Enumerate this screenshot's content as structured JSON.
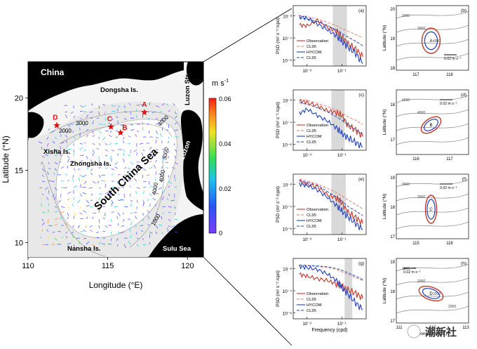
{
  "colors": {
    "obs": "#c0392b",
    "obs_ci": "#e07a6a",
    "model": "#1f3fbf",
    "model_ci": "#1f3fbf",
    "land": "#000000",
    "sea": "#ffffff",
    "shade": "#d9d9d9",
    "contour": "#808080"
  },
  "map": {
    "xlabel": "Longitude (°E)",
    "ylabel": "Latitude (°N)",
    "xticks": [
      "110",
      "115",
      "120"
    ],
    "yticks": [
      "10",
      "15",
      "20"
    ],
    "xlim": [
      110,
      121
    ],
    "ylim": [
      9,
      22.5
    ],
    "colorbar_unit": "m s",
    "colorbar_exp": "-1",
    "colorbar_ticks": [
      "0.06",
      "0.04",
      "0.02",
      "0"
    ],
    "colorbar_range": [
      0,
      0.06
    ],
    "labels": {
      "china": "China",
      "dongsha": "Dongsha Is.",
      "luzon_str": "Luzon Str.",
      "xisha": "Xisha Is.",
      "zhongsha": "Zhongsha Is.",
      "scs": "South China Sea",
      "luzon": "Luzon",
      "nansha": "Nansha Is.",
      "sulu": "Sulu Sea"
    },
    "isobath_labels": [
      "2000",
      "3000",
      "4000",
      "3000",
      "4000",
      "4000",
      "1000"
    ],
    "stations": [
      {
        "name": "A",
        "lon": 117.3,
        "lat": 19.0
      },
      {
        "name": "B",
        "lon": 115.8,
        "lat": 17.6
      },
      {
        "name": "C",
        "lon": 115.2,
        "lat": 18.0
      },
      {
        "name": "D",
        "lon": 111.8,
        "lat": 18.1
      }
    ]
  },
  "psd_panels": [
    {
      "tag": "(a)",
      "ylabel": "PSD (m² s⁻² /cpd)",
      "yticks": [
        "10⁻²",
        "10⁻⁴",
        "10⁻⁶"
      ],
      "xticks": [
        "10⁻²",
        "10⁻¹"
      ],
      "legend": [
        "Observation",
        "CL95",
        "HYCOM",
        "CL95"
      ],
      "xlabel": ""
    },
    {
      "tag": "(c)",
      "ylabel": "PSD (m² s⁻² /cpd)",
      "yticks": [
        "10⁻²",
        "10⁻⁴",
        "10⁻⁶"
      ],
      "xticks": [
        "10⁻²",
        "10⁻¹"
      ],
      "legend": [
        "Observation",
        "CL95",
        "HYCOM",
        "CL95"
      ],
      "xlabel": ""
    },
    {
      "tag": "(e)",
      "ylabel": "PSD (m² s⁻² /cpd)",
      "yticks": [
        "10⁻²",
        "10⁻⁴",
        "10⁻⁶"
      ],
      "xticks": [
        "10⁻²",
        "10⁻¹"
      ],
      "legend": [
        "Observation",
        "CL95",
        "HYCOM",
        "CL95"
      ],
      "xlabel": ""
    },
    {
      "tag": "(g)",
      "ylabel": "PSD (m² s⁻² /cpd)",
      "yticks": [
        "10⁻²",
        "10⁻⁴",
        "10⁻⁶"
      ],
      "xticks": [
        "10⁻²",
        "10⁻¹"
      ],
      "legend": [
        "Observation",
        "CL95",
        "HYCOM",
        "CL95"
      ],
      "xlabel": "Frequency (cpd)"
    }
  ],
  "ellipse_panels": [
    {
      "tag": "(b)",
      "point": "A",
      "ylabel": "Latitude (°N)",
      "yticks": [
        "20",
        "19",
        "18"
      ],
      "xticks": [
        "117",
        "118"
      ],
      "scale": "0.02 m s⁻¹",
      "contours": [
        "2000",
        "3000",
        "4000"
      ],
      "xlabel": ""
    },
    {
      "tag": "(d)",
      "point": "B",
      "ylabel": "Latitude (°N)",
      "yticks": [
        "18",
        "17"
      ],
      "xticks": [
        "116",
        "117"
      ],
      "scale": "0.02 m s⁻¹",
      "contours": [
        "4000",
        "4000"
      ],
      "xlabel": ""
    },
    {
      "tag": "(f)",
      "point": "C",
      "ylabel": "Latitude (°N)",
      "yticks": [
        "19",
        "18",
        "17"
      ],
      "xticks": [
        "115",
        "116"
      ],
      "scale": "0.02 m s⁻¹",
      "contours": [
        "3000",
        "3000"
      ],
      "xlabel": ""
    },
    {
      "tag": "(h)",
      "point": "D",
      "ylabel": "Latitude (°N)",
      "yticks": [
        "19",
        "18",
        "17"
      ],
      "xticks": [
        "111",
        "112",
        "113"
      ],
      "scale": "0.02 m s⁻¹",
      "contours": [
        "1000",
        "2000",
        "1000",
        "2000"
      ],
      "xlabel": "Longitude (°E)"
    }
  ],
  "watermark": "潮新社",
  "chart_data": [
    {
      "type": "line",
      "panel": "(a)",
      "x": [
        0.006,
        0.01,
        0.02,
        0.04,
        0.07,
        0.1,
        0.15,
        0.25,
        0.4
      ],
      "series": [
        {
          "name": "Observation",
          "values": [
            0.0015,
            0.0012,
            0.004,
            0.0008,
            0.00045,
            0.00012,
            3e-05,
            1e-05,
            2e-06
          ]
        },
        {
          "name": "CL95",
          "values": [
            0.01,
            0.008,
            0.005,
            0.0025,
            0.0012,
            0.0007,
            0.0004,
            0.0002,
            0.0001
          ]
        },
        {
          "name": "HYCOM",
          "values": [
            0.008,
            0.006,
            0.0018,
            0.0005,
            0.00015,
            5e-05,
            1.5e-05,
            4e-06,
            5e-07
          ]
        },
        {
          "name": "CL95",
          "values": [
            0.006,
            0.005,
            0.003,
            0.0012,
            0.0005,
            0.00025,
            0.00012,
            5e-05,
            2e-05
          ]
        }
      ],
      "shaded_band": [
        0.055,
        0.14
      ]
    },
    {
      "type": "line",
      "panel": "(c)",
      "x": [
        0.006,
        0.01,
        0.02,
        0.04,
        0.07,
        0.1,
        0.15,
        0.25,
        0.4
      ],
      "series": [
        {
          "name": "Observation",
          "values": [
            0.008,
            0.006,
            0.003,
            0.001,
            0.0008,
            0.0004,
            5e-05,
            2e-05,
            5e-06
          ]
        },
        {
          "name": "CL95",
          "values": [
            0.012,
            0.009,
            0.005,
            0.0025,
            0.0012,
            0.0007,
            0.0003,
            0.00015,
            6e-05
          ]
        },
        {
          "name": "HYCOM",
          "values": [
            0.0006,
            0.0015,
            0.0004,
            0.00012,
            3e-05,
            1e-05,
            4e-06,
            1.5e-06,
            6e-07
          ]
        },
        {
          "name": "CL95",
          "values": [
            0.006,
            0.004,
            0.002,
            0.0008,
            0.0003,
            0.00015,
            6e-05,
            2e-05,
            8e-06
          ]
        }
      ],
      "shaded_band": [
        0.05,
        0.12
      ]
    },
    {
      "type": "line",
      "panel": "(e)",
      "x": [
        0.006,
        0.01,
        0.02,
        0.04,
        0.07,
        0.1,
        0.15,
        0.25,
        0.4
      ],
      "series": [
        {
          "name": "Observation",
          "values": [
            0.02,
            0.01,
            0.006,
            0.001,
            0.0006,
            0.0002,
            3e-05,
            1e-05,
            3e-06
          ]
        },
        {
          "name": "CL95",
          "values": [
            0.03,
            0.02,
            0.01,
            0.004,
            0.0018,
            0.0009,
            0.0004,
            0.00015,
            6e-05
          ]
        },
        {
          "name": "HYCOM",
          "values": [
            0.01,
            0.008,
            0.003,
            0.0006,
            0.00012,
            4e-05,
            1.2e-05,
            3e-06,
            8e-07
          ]
        },
        {
          "name": "CL95",
          "values": [
            0.02,
            0.015,
            0.008,
            0.002,
            0.0007,
            0.0003,
            0.0001,
            4e-05,
            1.5e-05
          ]
        }
      ],
      "shaded_band": [
        0.05,
        0.13
      ]
    },
    {
      "type": "line",
      "panel": "(g)",
      "x": [
        0.006,
        0.01,
        0.02,
        0.04,
        0.07,
        0.1,
        0.15,
        0.25,
        0.4
      ],
      "series": [
        {
          "name": "Observation",
          "values": [
            0.003,
            0.002,
            0.0012,
            0.0008,
            0.0004,
            0.00025,
            0.00012,
            6e-05,
            2e-05
          ]
        },
        {
          "name": "CL95",
          "values": [
            0.02,
            0.018,
            0.015,
            0.012,
            0.008,
            0.005,
            0.003,
            0.0015,
            0.0008
          ]
        },
        {
          "name": "HYCOM",
          "values": [
            0.015,
            0.012,
            0.008,
            0.003,
            0.0008,
            0.0002,
            5e-05,
            8e-06,
            2e-06
          ]
        },
        {
          "name": "CL95",
          "values": [
            0.02,
            0.019,
            0.017,
            0.014,
            0.01,
            0.007,
            0.004,
            0.002,
            0.001
          ]
        }
      ],
      "shaded_band": [
        0.12,
        0.2
      ]
    }
  ]
}
